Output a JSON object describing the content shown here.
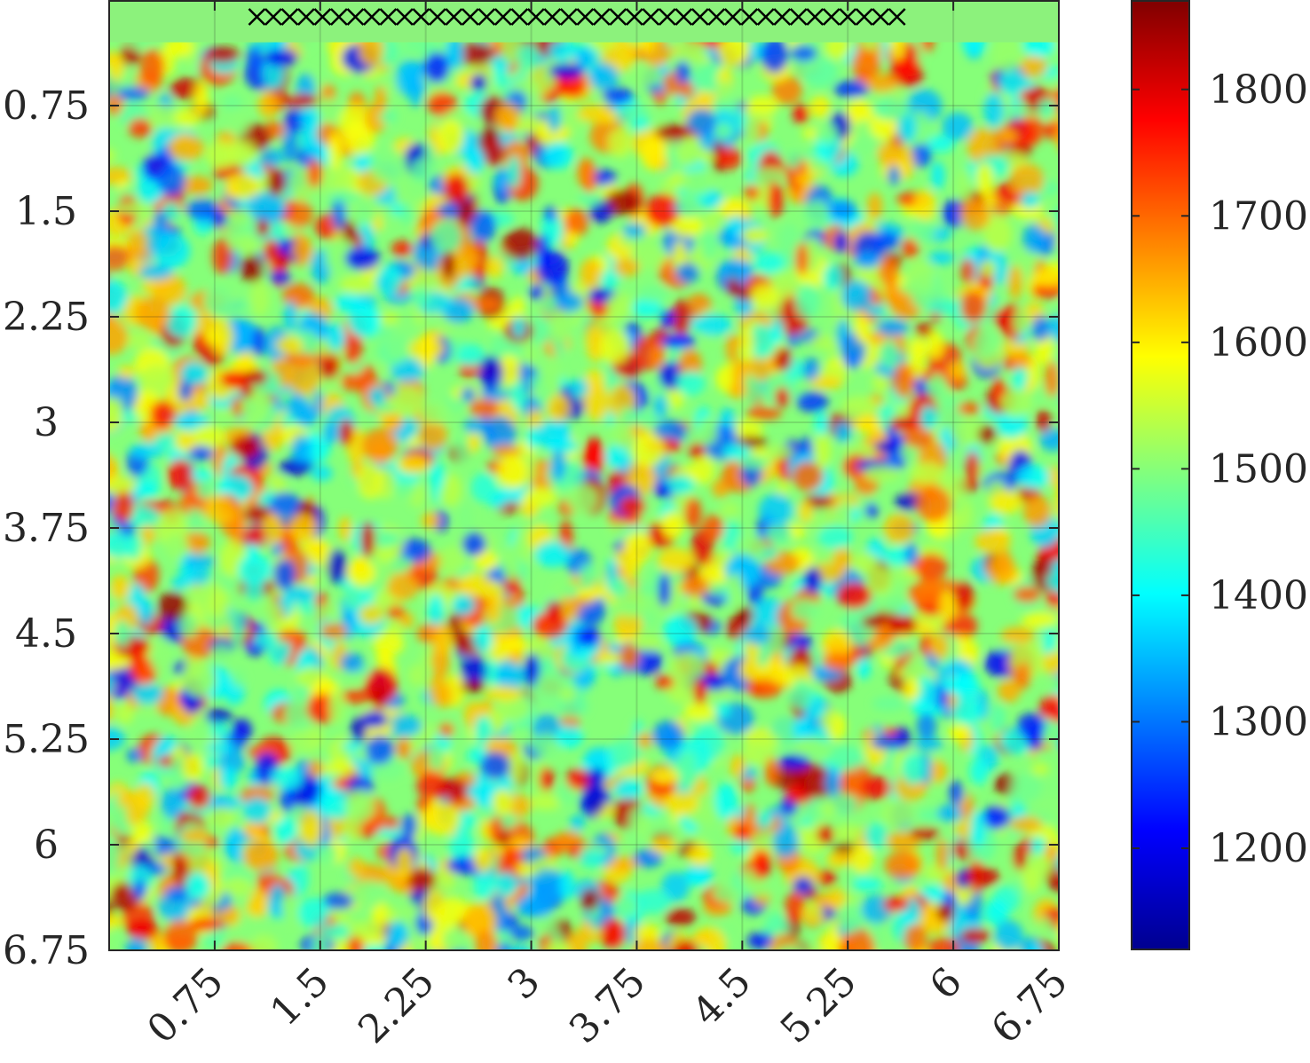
{
  "chart_data": {
    "type": "heatmap",
    "title": "",
    "xlabel": "",
    "ylabel": "",
    "xlim": [
      0,
      6.75
    ],
    "ylim": [
      6.75,
      0
    ],
    "y_axis_direction": "top-to-bottom",
    "x_ticks": [
      0.75,
      1.5,
      2.25,
      3,
      3.75,
      4.5,
      5.25,
      6,
      6.75
    ],
    "x_tick_labels": [
      "0.75",
      "1.5",
      "2.25",
      "3",
      "3.75",
      "4.5",
      "5.25",
      "6",
      "6.75"
    ],
    "y_ticks": [
      0.75,
      1.5,
      2.25,
      3,
      3.75,
      4.5,
      5.25,
      6,
      6.75
    ],
    "y_tick_labels": [
      "0.75",
      "1.5",
      "2.25",
      "3",
      "3.75",
      "4.5",
      "5.25",
      "6",
      "6.75"
    ],
    "grid": true,
    "colormap": "jet",
    "color_range": [
      1120,
      1870
    ],
    "colorbar_ticks": [
      1200,
      1300,
      1400,
      1500,
      1600,
      1700,
      1800
    ],
    "colorbar_tick_labels": [
      "1200",
      "1300",
      "1400",
      "1500",
      "1600",
      "1700",
      "1800"
    ],
    "colorbar_placement": "right",
    "background_value": 1500,
    "top_layer": {
      "from_depth": 0,
      "to_depth": 0.3,
      "value": 1500,
      "color": "#8cf27c"
    },
    "markers": {
      "symbol": "x",
      "depth": 0.12,
      "x_start": 1.05,
      "x_end": 5.6,
      "count": 40,
      "color": "#000000"
    }
  }
}
